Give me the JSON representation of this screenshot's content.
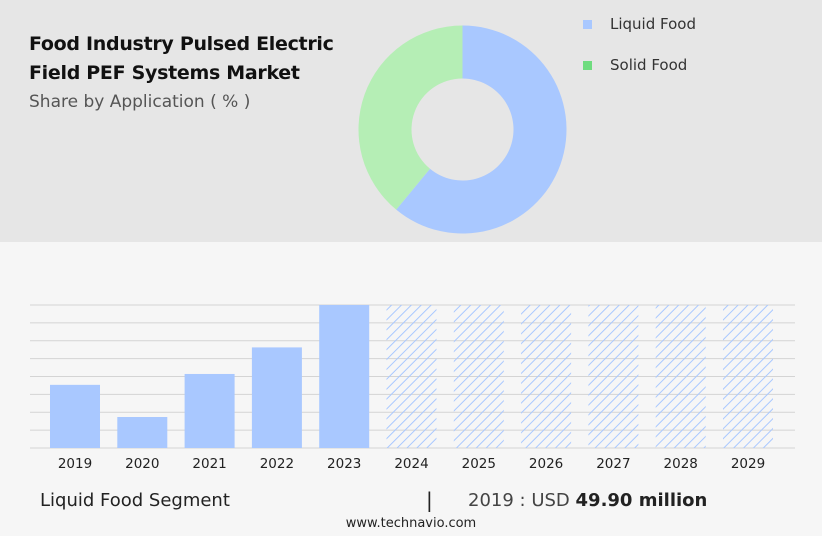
{
  "title": "Food Industry Pulsed Electric Field PEF Systems Market",
  "subtitle": "Share by Application ( % )",
  "colors": {
    "liquid_food": "#a9c8ff",
    "solid_food": "#b5eeb5",
    "legend_solid_food": "#6fdc7f",
    "grid": "#d4d4d4",
    "forecast_hatch": "#a9c8ff"
  },
  "legend": [
    {
      "label": "Liquid Food",
      "color": "#a9c8ff"
    },
    {
      "label": "Solid Food",
      "color": "#6fdc7f"
    }
  ],
  "chart_data": [
    {
      "type": "pie",
      "style": "donut",
      "categories": [
        "Liquid Food",
        "Solid Food"
      ],
      "values": [
        61,
        39
      ],
      "colors": [
        "#a9c8ff",
        "#b5eeb5"
      ]
    },
    {
      "type": "bar",
      "categories": [
        "2019",
        "2020",
        "2021",
        "2022",
        "2023",
        "2024",
        "2025",
        "2026",
        "2027",
        "2028",
        "2029"
      ],
      "values": [
        49.9,
        24.5,
        58.5,
        79.5,
        113,
        113,
        113,
        113,
        113,
        113,
        113
      ],
      "forecast_from_index": 5,
      "ylim": [
        0,
        113
      ],
      "grid": true,
      "xlabel": "",
      "ylabel": ""
    }
  ],
  "footer": {
    "segment_label": "Liquid Food Segment",
    "divider": "|",
    "year_prefix": "2019 : USD",
    "value": "49.90 million"
  },
  "website": "www.technavio.com"
}
